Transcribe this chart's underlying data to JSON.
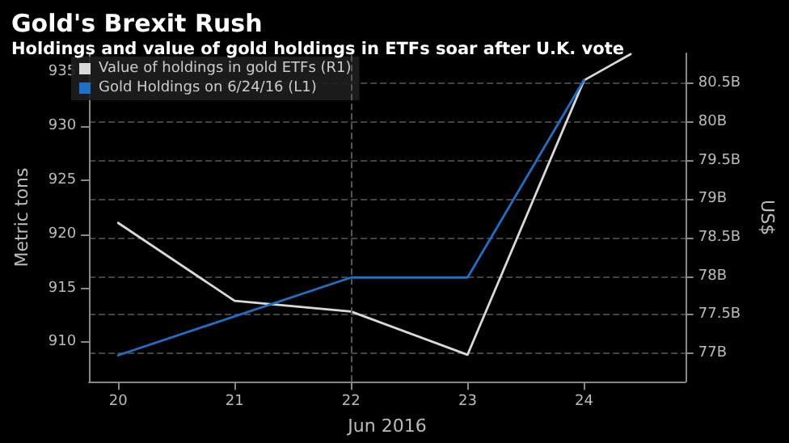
{
  "chart_data": {
    "type": "line",
    "title": "Gold's Brexit Rush",
    "subtitle": "Holdings and value of gold holdings in ETFs soar after U.K. vote",
    "xlabel": "Jun 2016",
    "ylabel": "Metric tons",
    "y2label": "US$",
    "x": [
      20,
      21,
      22,
      23,
      24
    ],
    "series": [
      {
        "name": "Value of holdings in gold ETFs (R1)",
        "color": "#d9d9d9",
        "axis": "y2",
        "x": [
          20,
          21,
          22,
          23,
          24,
          24.4
        ],
        "values": [
          78.69,
          77.68,
          77.54,
          76.98,
          80.54,
          80.88
        ]
      },
      {
        "name": "Gold Holdings on 6/24/16 (L1)",
        "color": "#1f6fc6",
        "values": [
          908.8,
          912.4,
          916,
          916,
          934.3
        ]
      }
    ],
    "xlim": [
      19.75,
      24.87
    ],
    "xticks": [
      20,
      21,
      22,
      23,
      24
    ],
    "ylim": [
      906.35,
      936.75
    ],
    "yticks": [
      910,
      915,
      920,
      925,
      930,
      935
    ],
    "y2lim": [
      76.63,
      80.89
    ],
    "y2ticks": [
      {
        "value": 77,
        "label": "77B"
      },
      {
        "value": 77.5,
        "label": "77.5B"
      },
      {
        "value": 78,
        "label": "78B"
      },
      {
        "value": 78.5,
        "label": "78.5B"
      },
      {
        "value": 79,
        "label": "79B"
      },
      {
        "value": 79.5,
        "label": "79.5B"
      },
      {
        "value": 80,
        "label": "80B"
      },
      {
        "value": 80.5,
        "label": "80.5B"
      }
    ],
    "ref_lines": [
      {
        "axis": "x",
        "value": 22,
        "color": "#555555",
        "line_style": "dashed"
      }
    ],
    "grid": "y2",
    "legend": "top left",
    "marker": "none",
    "line_style": "solid"
  }
}
